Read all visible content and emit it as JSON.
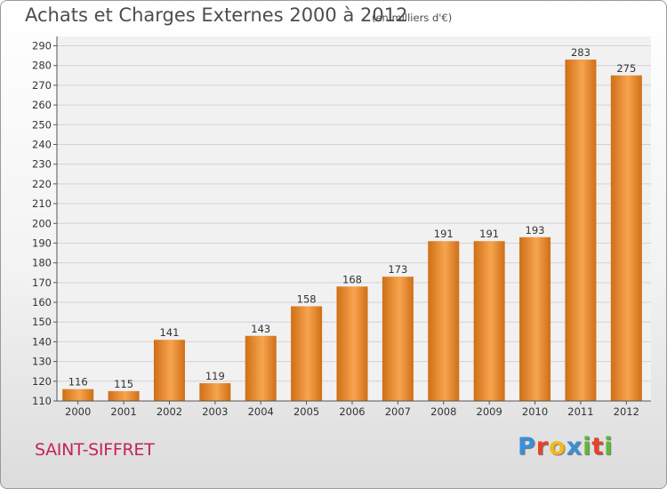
{
  "chart_data": {
    "type": "bar",
    "title": "Achats et Charges Externes 2000 à 2012",
    "subtitle": "(en milliers d'€)",
    "categories": [
      "2000",
      "2001",
      "2002",
      "2003",
      "2004",
      "2005",
      "2006",
      "2007",
      "2008",
      "2009",
      "2010",
      "2011",
      "2012"
    ],
    "values": [
      116,
      115,
      141,
      119,
      143,
      158,
      168,
      173,
      191,
      191,
      193,
      283,
      275
    ],
    "ylim": [
      110,
      290
    ],
    "yticks": [
      110,
      120,
      130,
      140,
      150,
      160,
      170,
      180,
      190,
      200,
      210,
      220,
      230,
      240,
      250,
      260,
      270,
      280,
      290
    ],
    "grid": true,
    "bar_color_top": "#f7a44f",
    "bar_color_bottom": "#cf6f16"
  },
  "footer": {
    "city": "SAINT-SIFFRET",
    "logo_letters": [
      {
        "ch": "P",
        "color": "#3a8fd8"
      },
      {
        "ch": "r",
        "color": "#e8422b"
      },
      {
        "ch": "o",
        "color": "#f2b81e"
      },
      {
        "ch": "x",
        "color": "#3a8fd8"
      },
      {
        "ch": "i",
        "color": "#5fb832"
      },
      {
        "ch": "t",
        "color": "#e8422b"
      },
      {
        "ch": "i",
        "color": "#5fb832"
      }
    ]
  }
}
